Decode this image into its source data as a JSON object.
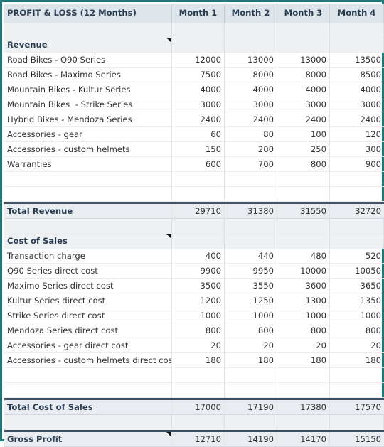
{
  "header": {
    "title": "PROFIT & LOSS (12 Months)",
    "months": [
      "Month 1",
      "Month 2",
      "Month 3",
      "Month 4"
    ]
  },
  "revenue": {
    "label": "Revenue",
    "rows": [
      {
        "label": "Road Bikes - Q90 Series",
        "values": [
          "12000",
          "13000",
          "13000",
          "13500"
        ]
      },
      {
        "label": "Road Bikes - Maximo Series",
        "values": [
          "7500",
          "8000",
          "8000",
          "8500"
        ]
      },
      {
        "label": "Mountain Bikes - Kultur Series",
        "values": [
          "4000",
          "4000",
          "4000",
          "4000"
        ]
      },
      {
        "label": "Mountain Bikes  - Strike Series",
        "values": [
          "3000",
          "3000",
          "3000",
          "3000"
        ]
      },
      {
        "label": "Hybrid Bikes - Mendoza Series",
        "values": [
          "2400",
          "2400",
          "2400",
          "2400"
        ]
      },
      {
        "label": "Accessories - gear",
        "values": [
          "60",
          "80",
          "100",
          "120"
        ]
      },
      {
        "label": "Accessories - custom helmets",
        "values": [
          "150",
          "200",
          "250",
          "300"
        ]
      },
      {
        "label": "Warranties",
        "values": [
          "600",
          "700",
          "800",
          "900"
        ]
      }
    ],
    "total_label": "Total Revenue",
    "total_values": [
      "29710",
      "31380",
      "31550",
      "32720"
    ]
  },
  "cost_of_sales": {
    "label": "Cost of Sales",
    "rows": [
      {
        "label": "Transaction charge",
        "values": [
          "400",
          "440",
          "480",
          "520"
        ]
      },
      {
        "label": "Q90 Series direct cost",
        "values": [
          "9900",
          "9950",
          "10000",
          "10050"
        ]
      },
      {
        "label": "Maximo Series direct cost",
        "values": [
          "3500",
          "3550",
          "3600",
          "3650"
        ]
      },
      {
        "label": "Kultur Series direct cost",
        "values": [
          "1200",
          "1250",
          "1300",
          "1350"
        ]
      },
      {
        "label": "Strike Series direct cost",
        "values": [
          "1000",
          "1000",
          "1000",
          "1000"
        ]
      },
      {
        "label": "Mendoza Series direct cost",
        "values": [
          "800",
          "800",
          "800",
          "800"
        ]
      },
      {
        "label": "Accessories - gear direct cost",
        "values": [
          "20",
          "20",
          "20",
          "20"
        ]
      },
      {
        "label": "Accessories - custom helmets direct cost",
        "values": [
          "180",
          "180",
          "180",
          "180"
        ]
      }
    ],
    "total_label": "Total Cost of Sales",
    "total_values": [
      "17000",
      "17190",
      "17380",
      "17570"
    ]
  },
  "gross_profit": {
    "label": "Gross Profit",
    "values": [
      "12710",
      "14190",
      "14170",
      "15150"
    ]
  },
  "colors": {
    "frame": "#1e7a7a",
    "header_bg": "#dde4ea",
    "header_text": "#2b3d52",
    "thick_rule": "#3e5064"
  }
}
